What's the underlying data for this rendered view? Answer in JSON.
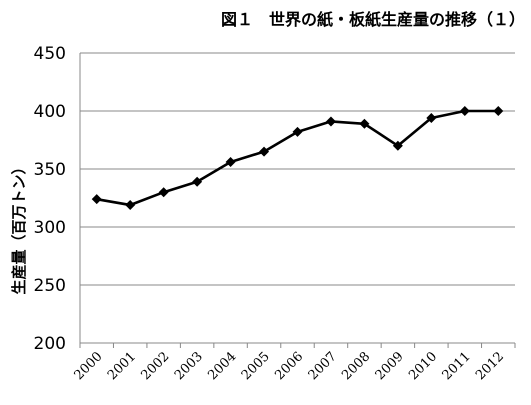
{
  "chart_data": {
    "type": "line",
    "title": "図１　世界の紙・板紙生産量の推移（１）",
    "xlabel": "",
    "ylabel": "生産量（百万トン）",
    "ylim": [
      200,
      450
    ],
    "yticks": [
      200,
      250,
      300,
      350,
      400,
      450
    ],
    "categories": [
      "2000",
      "2001",
      "2002",
      "2003",
      "2004",
      "2005",
      "2006",
      "2007",
      "2008",
      "2009",
      "2010",
      "2011",
      "2012"
    ],
    "series": [
      {
        "name": "",
        "values": [
          324,
          319,
          330,
          339,
          356,
          365,
          382,
          391,
          389,
          370,
          394,
          400,
          400
        ]
      }
    ],
    "grid": true,
    "legend": "none",
    "colors": {
      "line": "#000000",
      "grid": "#888888",
      "axis": "#888888"
    }
  }
}
